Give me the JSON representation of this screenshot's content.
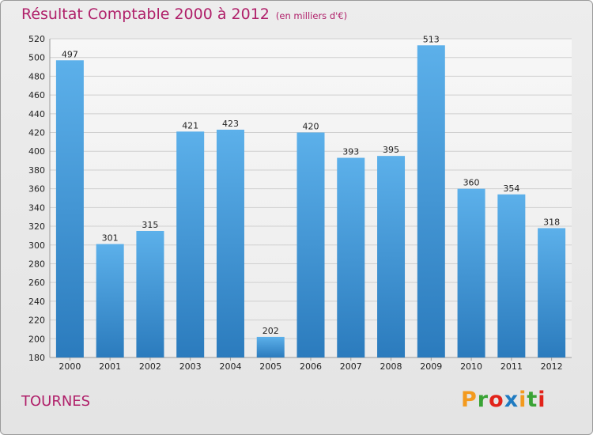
{
  "header": {
    "title": "Résultat Comptable 2000 à 2012",
    "subtitle": "(en milliers d'€)"
  },
  "footer": {
    "commune": "TOURNES",
    "logo": "Proxiti",
    "logo_colors": [
      "#f39a1e",
      "#3aa335",
      "#e2231a",
      "#1f7bc1",
      "#f39a1e",
      "#3aa335",
      "#e2231a"
    ]
  },
  "chart_data": {
    "type": "bar",
    "categories": [
      "2000",
      "2001",
      "2002",
      "2003",
      "2004",
      "2005",
      "2006",
      "2007",
      "2008",
      "2009",
      "2010",
      "2011",
      "2012"
    ],
    "values": [
      497,
      301,
      315,
      421,
      423,
      202,
      420,
      393,
      395,
      513,
      360,
      354,
      318
    ],
    "ylim": [
      180,
      520
    ],
    "yticks": [
      180,
      200,
      220,
      240,
      260,
      280,
      300,
      320,
      340,
      360,
      380,
      400,
      420,
      440,
      460,
      480,
      500,
      520
    ],
    "grid": true,
    "bar_color": "#3d93d4"
  }
}
